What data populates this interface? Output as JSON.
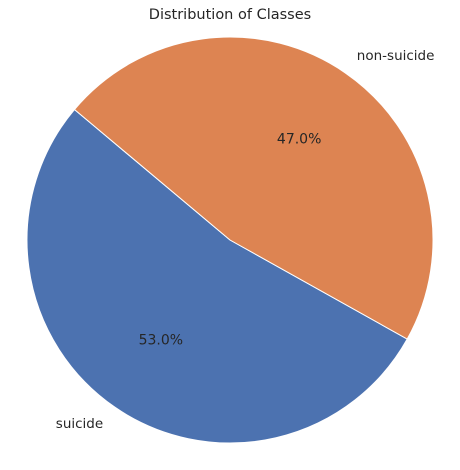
{
  "chart_data": {
    "type": "pie",
    "title": "Distribution of Classes",
    "slices": [
      {
        "label": "suicide",
        "value": 53.0,
        "pct_label": "53.0%",
        "color": "#4c72b0"
      },
      {
        "label": "non-suicide",
        "value": 47.0,
        "pct_label": "47.0%",
        "color": "#dd8452"
      }
    ],
    "start_angle_deg": 140,
    "direction": "counterclockwise",
    "edge_color": "#ffffff"
  }
}
